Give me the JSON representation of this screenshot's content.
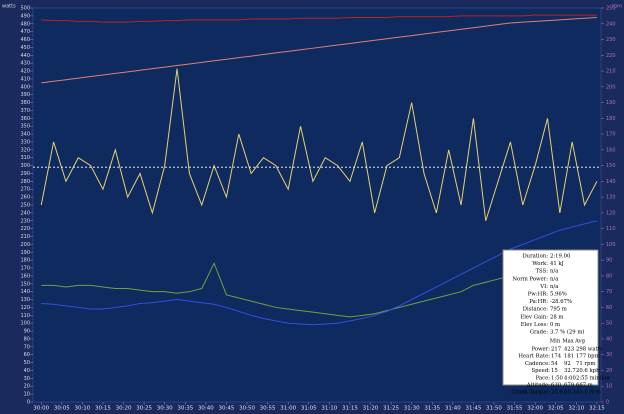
{
  "chart_data": {
    "type": "line",
    "y_label": "watts",
    "y2_label": "rpm",
    "xlim": [
      1798,
      1936
    ],
    "xticks": [
      {
        "value": 1800,
        "label": "30:00"
      },
      {
        "value": 1805,
        "label": "30:05"
      },
      {
        "value": 1810,
        "label": "30:10"
      },
      {
        "value": 1815,
        "label": "30:15"
      },
      {
        "value": 1820,
        "label": "30:20"
      },
      {
        "value": 1825,
        "label": "30:25"
      },
      {
        "value": 1830,
        "label": "30:30"
      },
      {
        "value": 1835,
        "label": "30:35"
      },
      {
        "value": 1840,
        "label": "30:40"
      },
      {
        "value": 1845,
        "label": "30:45"
      },
      {
        "value": 1850,
        "label": "30:50"
      },
      {
        "value": 1855,
        "label": "30:55"
      },
      {
        "value": 1860,
        "label": "31:00"
      },
      {
        "value": 1865,
        "label": "31:05"
      },
      {
        "value": 1870,
        "label": "31:10"
      },
      {
        "value": 1875,
        "label": "31:15"
      },
      {
        "value": 1880,
        "label": "31:20"
      },
      {
        "value": 1885,
        "label": "31:25"
      },
      {
        "value": 1890,
        "label": "31:30"
      },
      {
        "value": 1895,
        "label": "31:35"
      },
      {
        "value": 1900,
        "label": "31:40"
      },
      {
        "value": 1905,
        "label": "31:45"
      },
      {
        "value": 1910,
        "label": "31:50"
      },
      {
        "value": 1915,
        "label": "31:55"
      },
      {
        "value": 1920,
        "label": "32:00"
      },
      {
        "value": 1925,
        "label": "32:05"
      },
      {
        "value": 1930,
        "label": "32:10"
      },
      {
        "value": 1935,
        "label": "32:15"
      }
    ],
    "ylim": [
      0,
      500
    ],
    "yticks": [
      0,
      10,
      20,
      30,
      40,
      50,
      60,
      70,
      80,
      90,
      100,
      110,
      120,
      130,
      140,
      150,
      160,
      170,
      180,
      190,
      200,
      210,
      220,
      230,
      240,
      250,
      260,
      270,
      280,
      290,
      300,
      310,
      320,
      330,
      340,
      350,
      360,
      370,
      380,
      390,
      400,
      410,
      420,
      430,
      440,
      450,
      460,
      470,
      480,
      490,
      500
    ],
    "y2lim": [
      0,
      250
    ],
    "y2ticks": [
      0,
      10,
      20,
      30,
      40,
      50,
      60,
      70,
      80,
      90,
      100,
      110,
      120,
      130,
      140,
      150,
      160,
      170,
      180,
      190,
      200,
      210,
      220,
      230,
      240,
      250
    ],
    "mean_line": 298,
    "x": [
      1800,
      1803,
      1806,
      1809,
      1812,
      1815,
      1818,
      1821,
      1824,
      1827,
      1830,
      1833,
      1836,
      1839,
      1842,
      1845,
      1848,
      1851,
      1854,
      1857,
      1860,
      1863,
      1866,
      1869,
      1872,
      1875,
      1878,
      1881,
      1884,
      1887,
      1890,
      1893,
      1896,
      1899,
      1902,
      1905,
      1908,
      1911,
      1914,
      1917,
      1920,
      1923,
      1926,
      1929,
      1932,
      1935
    ],
    "series": [
      {
        "name": "Power",
        "color": "#e8d070",
        "values": [
          250,
          330,
          280,
          310,
          300,
          270,
          320,
          260,
          290,
          240,
          300,
          423,
          290,
          250,
          300,
          260,
          340,
          290,
          310,
          300,
          270,
          350,
          280,
          310,
          300,
          280,
          330,
          240,
          300,
          310,
          380,
          290,
          240,
          320,
          250,
          360,
          230,
          280,
          330,
          250,
          300,
          360,
          240,
          330,
          250,
          280
        ]
      },
      {
        "name": "Heart Rate",
        "color": "#c02020",
        "values": [
          485,
          484,
          484,
          483,
          483,
          482,
          482,
          482,
          483,
          483,
          484,
          484,
          485,
          485,
          485,
          485,
          485,
          486,
          486,
          486,
          486,
          487,
          487,
          487,
          487,
          488,
          488,
          488,
          488,
          489,
          489,
          489,
          489,
          489,
          490,
          490,
          490,
          490,
          490,
          490,
          491,
          491,
          491,
          491,
          491,
          491
        ]
      },
      {
        "name": "Altitude",
        "color": "#e08070",
        "values": [
          405,
          407,
          409,
          411,
          413,
          415,
          417,
          419,
          421,
          423,
          425,
          427,
          429,
          431,
          433,
          435,
          437,
          439,
          441,
          443,
          445,
          447,
          449,
          451,
          453,
          455,
          457,
          459,
          461,
          463,
          465,
          467,
          469,
          471,
          473,
          475,
          477,
          479,
          481,
          482,
          483,
          484,
          485,
          486,
          487,
          488
        ]
      },
      {
        "name": "Cadence",
        "color": "#70a040",
        "axis": "y2",
        "values": [
          74,
          74,
          73,
          74,
          74,
          73,
          72,
          72,
          71,
          70,
          70,
          69,
          70,
          72,
          88,
          68,
          66,
          64,
          62,
          60,
          59,
          58,
          57,
          56,
          55,
          54,
          55,
          56,
          58,
          60,
          62,
          64,
          66,
          68,
          70,
          74,
          76,
          78,
          80,
          84,
          86,
          88,
          90,
          91,
          92,
          92
        ]
      },
      {
        "name": "Speed",
        "color": "#3050e0",
        "values": [
          125,
          124,
          122,
          120,
          118,
          118,
          120,
          122,
          125,
          126,
          128,
          130,
          128,
          126,
          124,
          120,
          115,
          110,
          106,
          103,
          100,
          99,
          98,
          99,
          100,
          103,
          106,
          110,
          115,
          122,
          130,
          138,
          146,
          154,
          162,
          170,
          178,
          186,
          194,
          200,
          206,
          212,
          218,
          222,
          226,
          230
        ]
      }
    ],
    "stats": {
      "summary": [
        [
          "Duration:",
          "2:19.00"
        ],
        [
          "Work:",
          "41 kJ"
        ],
        [
          "TSS:",
          "n/a"
        ],
        [
          "Norm Power:",
          "n/a"
        ],
        [
          "VI:",
          "n/a"
        ],
        [
          "Pw:HR:",
          "5.96%"
        ],
        [
          "Pa:HR:",
          "-28.67%"
        ],
        [
          "Distance:",
          "795 m"
        ],
        [
          "Elev Gain:",
          "28 m"
        ],
        [
          "Elev Loss:",
          "0 m"
        ],
        [
          "Grade:",
          "3.7 % (29 m)"
        ]
      ],
      "header": [
        "Min",
        "Max",
        "Avg"
      ],
      "rows": [
        [
          "Power:",
          "217",
          "423",
          "298 watts"
        ],
        [
          "Heart Rate:",
          "174",
          "181",
          "177 bpm"
        ],
        [
          "Cadence:",
          "54",
          "92",
          "71 rpm"
        ],
        [
          "Speed:",
          "15",
          "32.7",
          "20.6 kph"
        ],
        [
          "Pace:",
          "1:50",
          "4:00",
          "2:55 min/km"
        ],
        [
          "Altitude:",
          "630",
          "679",
          "667 m"
        ],
        [
          "Crank Torque:",
          "25.9",
          "65.3",
          "41.0 N·m"
        ]
      ]
    }
  }
}
